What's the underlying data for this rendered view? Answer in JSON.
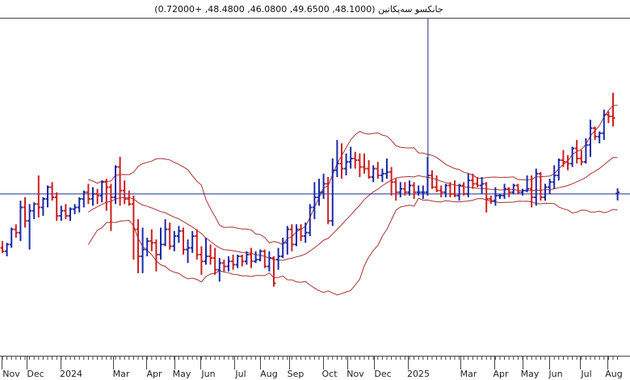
{
  "chart_data": {
    "type": "ohlc",
    "title": "جانکسو سه‌پکاتین (48.1000, 49.6500, 46.0800, 48.4800, +0.72000)",
    "indicator": "Bollinger Bands",
    "x_ticks": [
      "Nov",
      "Dec",
      "2024",
      "Mar",
      "Apr",
      "May",
      "Jun",
      "Jul",
      "Aug",
      "Sep",
      "Oct",
      "Nov",
      "Dec",
      "2025",
      "Mar",
      "Apr",
      "May",
      "Jun",
      "Jul",
      "Aug"
    ],
    "ylim": [
      0,
      100
    ],
    "crosshair": {
      "x_week": 94,
      "y_value": 48.1
    },
    "colors": {
      "up": "#1b2aa6",
      "down": "#cc1f1f",
      "band": "#a83232",
      "crosshair": "#1f2a8a"
    },
    "bars": [
      [
        32.0,
        34.0,
        30.5,
        31.0
      ],
      [
        31.0,
        33.5,
        29.5,
        33.0
      ],
      [
        33.0,
        38.0,
        32.0,
        37.5
      ],
      [
        37.5,
        39.0,
        35.0,
        36.5
      ],
      [
        36.5,
        46.0,
        34.0,
        44.0
      ],
      [
        44.0,
        47.0,
        38.0,
        40.0
      ],
      [
        40.0,
        45.0,
        31.5,
        43.0
      ],
      [
        43.0,
        45.5,
        40.5,
        45.0
      ],
      [
        45.0,
        53.5,
        41.0,
        44.0
      ],
      [
        44.0,
        47.0,
        41.5,
        46.5
      ],
      [
        46.5,
        50.5,
        44.0,
        50.0
      ],
      [
        50.0,
        51.5,
        46.0,
        47.0
      ],
      [
        47.0,
        48.5,
        40.0,
        41.5
      ],
      [
        41.5,
        44.5,
        40.0,
        43.0
      ],
      [
        43.0,
        45.0,
        40.5,
        41.5
      ],
      [
        41.5,
        44.0,
        40.0,
        43.5
      ],
      [
        43.5,
        45.0,
        42.0,
        44.0
      ],
      [
        44.0,
        47.0,
        42.5,
        46.5
      ],
      [
        46.5,
        49.0,
        44.0,
        48.5
      ],
      [
        48.5,
        51.0,
        45.0,
        46.5
      ],
      [
        46.5,
        50.0,
        44.5,
        48.0
      ],
      [
        48.0,
        49.5,
        45.0,
        47.5
      ],
      [
        47.5,
        52.0,
        45.5,
        51.5
      ],
      [
        51.5,
        52.5,
        43.0,
        50.0
      ],
      [
        50.0,
        51.0,
        37.0,
        47.0
      ],
      [
        47.0,
        56.5,
        45.0,
        56.0
      ],
      [
        56.0,
        59.0,
        44.5,
        49.0
      ],
      [
        49.0,
        52.0,
        45.0,
        46.5
      ],
      [
        46.5,
        49.0,
        44.5,
        45.0
      ],
      [
        45.0,
        47.5,
        28.5,
        37.5
      ],
      [
        37.5,
        40.5,
        24.5,
        29.5
      ],
      [
        29.5,
        38.0,
        24.5,
        31.5
      ],
      [
        31.5,
        35.0,
        29.5,
        34.0
      ],
      [
        34.0,
        37.5,
        31.0,
        33.5
      ],
      [
        33.5,
        34.5,
        25.0,
        30.0
      ],
      [
        30.0,
        38.0,
        28.5,
        33.0
      ],
      [
        33.0,
        40.5,
        32.5,
        37.5
      ],
      [
        37.5,
        39.5,
        31.5,
        32.5
      ],
      [
        32.5,
        37.0,
        31.0,
        35.5
      ],
      [
        35.5,
        38.5,
        33.5,
        37.0
      ],
      [
        37.0,
        38.0,
        30.0,
        31.5
      ],
      [
        31.5,
        34.5,
        27.5,
        32.0
      ],
      [
        32.0,
        37.0,
        30.5,
        35.5
      ],
      [
        35.5,
        37.5,
        28.5,
        30.0
      ],
      [
        30.0,
        32.5,
        24.0,
        28.0
      ],
      [
        28.0,
        35.0,
        27.0,
        29.5
      ],
      [
        29.5,
        33.0,
        27.0,
        29.0
      ],
      [
        29.0,
        32.0,
        24.0,
        25.5
      ],
      [
        25.5,
        29.0,
        22.0,
        27.5
      ],
      [
        27.5,
        28.5,
        25.0,
        26.5
      ],
      [
        26.5,
        29.5,
        25.0,
        28.0
      ],
      [
        28.0,
        30.0,
        25.5,
        27.0
      ],
      [
        27.0,
        30.0,
        26.0,
        29.5
      ],
      [
        29.5,
        30.0,
        26.5,
        28.0
      ],
      [
        28.0,
        31.0,
        27.0,
        30.0
      ],
      [
        30.0,
        32.0,
        26.0,
        28.0
      ],
      [
        28.0,
        31.0,
        27.5,
        28.5
      ],
      [
        28.5,
        31.5,
        28.0,
        31.0
      ],
      [
        31.0,
        31.5,
        26.0,
        26.5
      ],
      [
        26.5,
        31.0,
        25.0,
        29.0
      ],
      [
        29.0,
        29.5,
        20.5,
        21.5
      ],
      [
        28.5,
        32.0,
        25.5,
        29.5
      ],
      [
        29.5,
        35.0,
        29.0,
        33.5
      ],
      [
        33.5,
        38.5,
        30.0,
        37.5
      ],
      [
        37.5,
        39.0,
        31.0,
        33.0
      ],
      [
        33.0,
        39.0,
        32.5,
        37.5
      ],
      [
        37.5,
        39.0,
        34.0,
        35.5
      ],
      [
        35.5,
        39.5,
        33.5,
        36.5
      ],
      [
        36.5,
        45.0,
        35.5,
        44.0
      ],
      [
        44.0,
        51.5,
        40.5,
        47.0
      ],
      [
        47.0,
        52.5,
        44.5,
        48.5
      ],
      [
        48.5,
        54.0,
        46.5,
        51.0
      ],
      [
        51.0,
        53.0,
        39.0,
        40.0
      ],
      [
        40.0,
        58.5,
        38.5,
        55.0
      ],
      [
        55.0,
        64.0,
        53.0,
        57.0
      ],
      [
        57.0,
        63.0,
        52.5,
        55.5
      ],
      [
        55.5,
        60.0,
        53.5,
        57.5
      ],
      [
        57.5,
        62.0,
        55.5,
        58.5
      ],
      [
        58.5,
        60.5,
        55.5,
        58.0
      ],
      [
        58.0,
        60.0,
        53.0,
        56.0
      ],
      [
        56.0,
        60.0,
        54.0,
        55.5
      ],
      [
        55.5,
        58.0,
        52.5,
        53.0
      ],
      [
        53.0,
        56.5,
        51.5,
        55.5
      ],
      [
        55.5,
        57.5,
        52.5,
        53.5
      ],
      [
        53.5,
        55.5,
        51.5,
        54.0
      ],
      [
        54.0,
        58.5,
        52.5,
        54.5
      ],
      [
        54.5,
        56.0,
        47.5,
        51.5
      ],
      [
        51.5,
        52.5,
        46.0,
        48.5
      ],
      [
        48.5,
        51.5,
        47.0,
        49.5
      ],
      [
        49.5,
        51.5,
        47.5,
        48.5
      ],
      [
        48.5,
        52.0,
        47.5,
        50.5
      ],
      [
        50.5,
        51.5,
        46.5,
        48.5
      ],
      [
        48.5,
        50.5,
        47.5,
        48.5
      ],
      [
        48.5,
        50.5,
        46.5,
        48.5
      ],
      [
        48.5,
        59.0,
        47.5,
        53.5
      ],
      [
        53.5,
        55.0,
        49.5,
        50.0
      ],
      [
        50.0,
        53.5,
        48.5,
        49.0
      ],
      [
        49.0,
        50.5,
        47.0,
        48.5
      ],
      [
        48.5,
        51.0,
        47.0,
        50.5
      ],
      [
        50.5,
        51.5,
        47.0,
        48.0
      ],
      [
        48.0,
        52.0,
        47.0,
        47.5
      ],
      [
        47.5,
        51.0,
        46.0,
        50.5
      ],
      [
        50.5,
        51.5,
        47.5,
        48.0
      ],
      [
        48.0,
        54.0,
        47.0,
        52.0
      ],
      [
        52.0,
        54.0,
        49.5,
        51.0
      ],
      [
        51.0,
        53.0,
        50.0,
        50.5
      ],
      [
        50.5,
        53.0,
        48.0,
        51.0
      ],
      [
        51.0,
        51.5,
        42.5,
        46.5
      ],
      [
        46.5,
        47.5,
        45.0,
        46.0
      ],
      [
        46.0,
        50.0,
        44.5,
        47.5
      ],
      [
        47.5,
        48.0,
        46.5,
        47.5
      ],
      [
        47.5,
        51.0,
        46.5,
        49.5
      ],
      [
        49.5,
        50.0,
        47.0,
        48.5
      ],
      [
        48.5,
        51.0,
        48.0,
        50.5
      ],
      [
        50.5,
        51.0,
        48.0,
        48.5
      ],
      [
        48.5,
        49.5,
        47.5,
        49.0
      ],
      [
        49.0,
        53.5,
        48.5,
        49.5
      ],
      [
        49.5,
        53.5,
        44.0,
        47.0
      ],
      [
        47.0,
        55.5,
        44.5,
        54.0
      ],
      [
        54.0,
        54.5,
        46.0,
        47.0
      ],
      [
        47.0,
        51.0,
        46.0,
        50.0
      ],
      [
        50.0,
        52.5,
        48.0,
        51.5
      ],
      [
        51.5,
        56.5,
        49.5,
        53.5
      ],
      [
        53.5,
        58.5,
        52.0,
        58.0
      ],
      [
        58.0,
        61.0,
        56.0,
        57.5
      ],
      [
        57.5,
        59.5,
        55.0,
        57.0
      ],
      [
        57.0,
        62.0,
        56.0,
        61.5
      ],
      [
        61.5,
        64.0,
        57.0,
        58.5
      ],
      [
        58.5,
        61.0,
        56.5,
        57.5
      ],
      [
        57.5,
        64.5,
        57.0,
        62.5
      ],
      [
        62.5,
        70.0,
        59.0,
        67.5
      ],
      [
        67.5,
        68.0,
        64.0,
        65.0
      ],
      [
        65.0,
        66.5,
        63.0,
        66.0
      ],
      [
        66.0,
        73.0,
        64.0,
        71.5
      ],
      [
        71.5,
        72.5,
        69.0,
        71.0
      ],
      [
        71.0,
        78.0,
        68.0,
        70.5
      ],
      [
        48.1,
        49.65,
        46.08,
        48.48
      ]
    ]
  }
}
